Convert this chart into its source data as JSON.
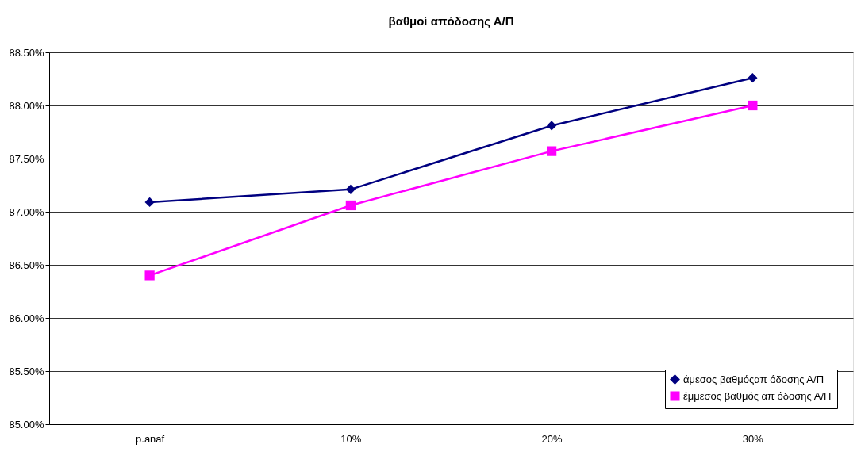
{
  "chart_data": {
    "type": "line",
    "title": "βαθμοί απόδοσης Α/Π",
    "categories": [
      "p.anaf",
      "10%",
      "20%",
      "30%"
    ],
    "series": [
      {
        "name": "άμεσος βαθμόςαπ όδοσης Α/Π",
        "color": "#000080",
        "marker": "diamond",
        "values": [
          87.09,
          87.21,
          87.81,
          88.26
        ]
      },
      {
        "name": "έμμεσος βαθμός απ όδοσης Α/Π",
        "color": "#ff00ff",
        "marker": "square",
        "values": [
          86.4,
          87.06,
          87.57,
          88.0
        ]
      }
    ],
    "ylim": [
      85.0,
      88.5
    ],
    "yticks": [
      {
        "value": 85.0,
        "label": "85.00%"
      },
      {
        "value": 85.5,
        "label": "85.50%"
      },
      {
        "value": 86.0,
        "label": "86.00%"
      },
      {
        "value": 86.5,
        "label": "86.50%"
      },
      {
        "value": 87.0,
        "label": "87.00%"
      },
      {
        "value": 87.5,
        "label": "87.50%"
      },
      {
        "value": 88.0,
        "label": "88.00%"
      },
      {
        "value": 88.5,
        "label": "88.50%"
      }
    ],
    "grid": "y",
    "legend": "bottom right",
    "line_style": "solid"
  }
}
